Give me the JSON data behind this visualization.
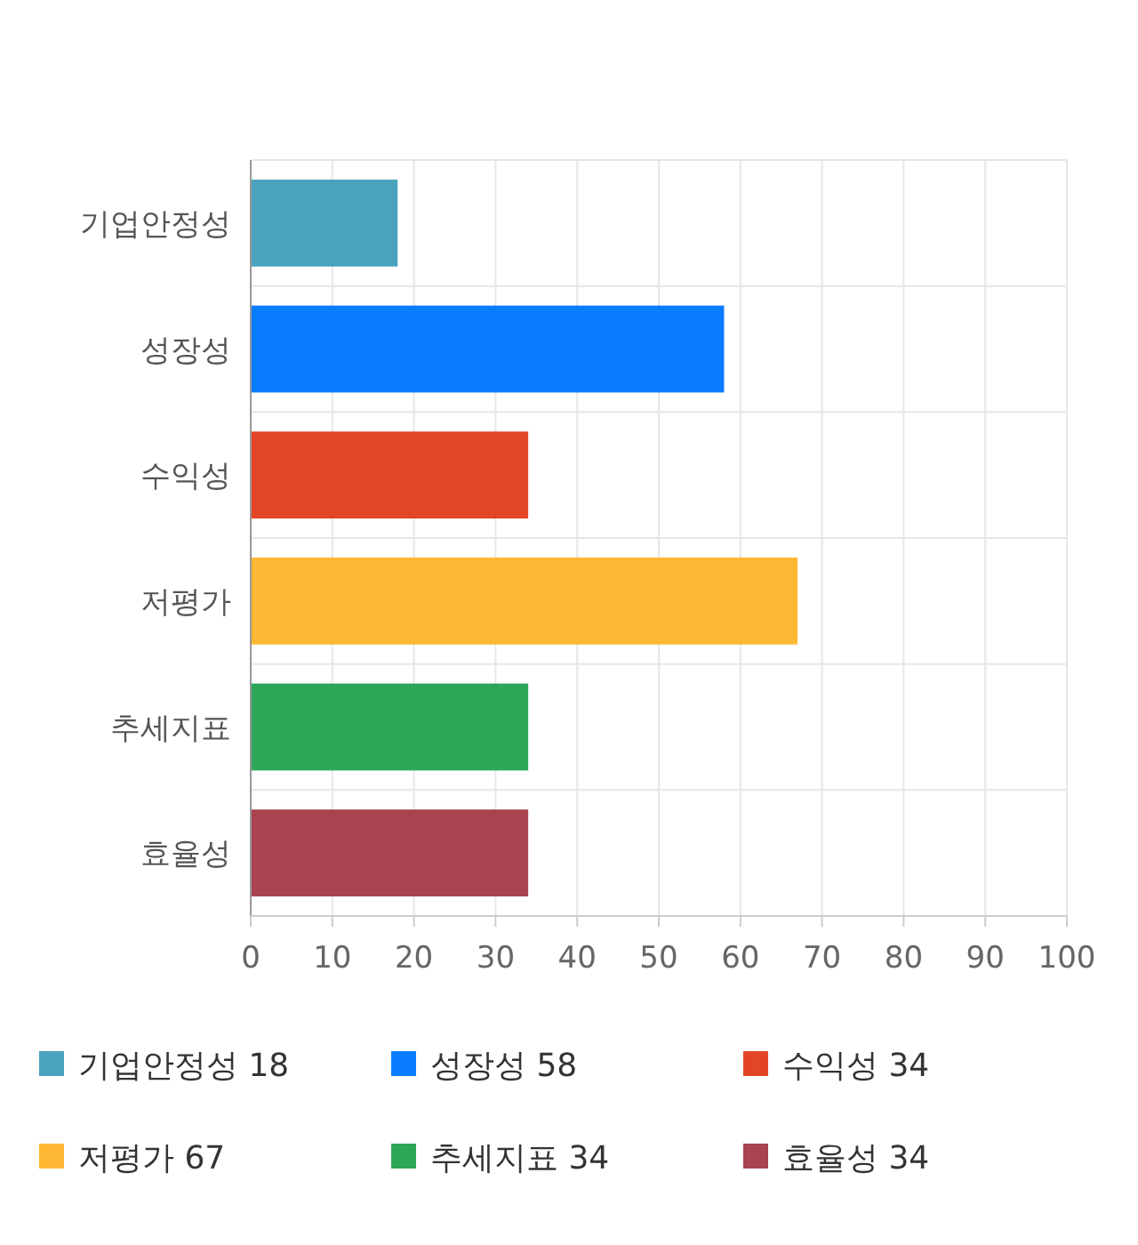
{
  "chart_data": {
    "type": "bar",
    "orientation": "horizontal",
    "categories": [
      "기업안정성",
      "성장성",
      "수익성",
      "저평가",
      "추세지표",
      "효율성"
    ],
    "series": [
      {
        "name": "기업안정성 18",
        "color": "#4aa3bd",
        "values": [
          18,
          null,
          null,
          null,
          null,
          null
        ]
      },
      {
        "name": "성장성 58",
        "color": "#0a7cff",
        "values": [
          null,
          58,
          null,
          null,
          null,
          null
        ]
      },
      {
        "name": "수익성 34",
        "color": "#e34627",
        "values": [
          null,
          null,
          34,
          null,
          null,
          null
        ]
      },
      {
        "name": "저평가 67",
        "color": "#ffb833",
        "values": [
          null,
          null,
          null,
          67,
          null,
          null
        ]
      },
      {
        "name": "추세지표 34",
        "color": "#2ba756",
        "values": [
          null,
          null,
          null,
          null,
          34,
          null
        ]
      },
      {
        "name": "효율성 34",
        "color": "#a8434f",
        "values": [
          null,
          null,
          null,
          null,
          null,
          34
        ]
      }
    ],
    "xlim": [
      0,
      100
    ],
    "xticks": [
      0,
      10,
      20,
      30,
      40,
      50,
      60,
      70,
      80,
      90,
      100
    ],
    "grid": true,
    "legend": "bottom"
  }
}
